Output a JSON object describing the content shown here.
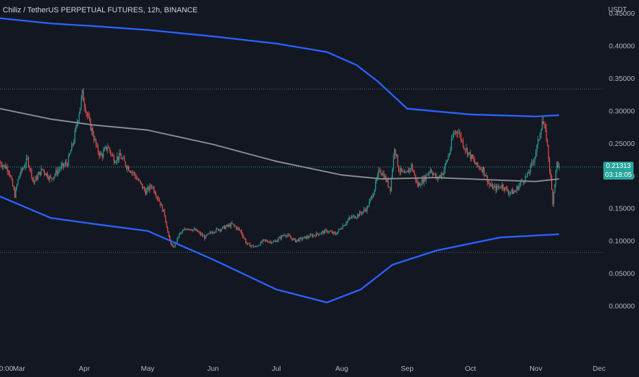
{
  "header": {
    "symbol_title": "Chiliz / TetherUS PERPETUAL FUTURES, 12h, BINANCE",
    "currency": "USDT"
  },
  "last_price": {
    "value": "0.21313",
    "countdown": "03:18:05"
  },
  "colors": {
    "background": "#131722",
    "up": "#26a69a",
    "down": "#ef5350",
    "band": "#2962ff",
    "basis": "#8d8d8d",
    "grid_line": "#5d606b",
    "text": "#b2b5be"
  },
  "chart_data": {
    "type": "candlestick",
    "y_axis": {
      "min": -0.08,
      "max": 0.47,
      "ticks": [
        "0.45000",
        "0.40000",
        "0.35000",
        "0.30000",
        "0.25000",
        "0.20000",
        "0.15000",
        "0.10000",
        "0.05000",
        "0.00000"
      ]
    },
    "x_axis": {
      "labels": [
        "0:00",
        "Mar",
        "Apr",
        "May",
        "Jun",
        "Jul",
        "Aug",
        "Sep",
        "Oct",
        "Nov",
        "Dec"
      ]
    },
    "horizontal_lines": [
      0.333,
      0.082
    ],
    "close_path": [
      [
        "Feb 20",
        0.22
      ],
      [
        "Feb 24",
        0.21
      ],
      [
        "Feb 27",
        0.17
      ],
      [
        "Mar 1",
        0.2
      ],
      [
        "Mar 5",
        0.225
      ],
      [
        "Mar 8",
        0.19
      ],
      [
        "Mar 12",
        0.21
      ],
      [
        "Mar 16",
        0.195
      ],
      [
        "Mar 20",
        0.21
      ],
      [
        "Mar 24",
        0.22
      ],
      [
        "Mar 27",
        0.255
      ],
      [
        "Mar 29",
        0.29
      ],
      [
        "Mar 31",
        0.325
      ],
      [
        "Apr 3",
        0.285
      ],
      [
        "Apr 5",
        0.265
      ],
      [
        "Apr 7",
        0.24
      ],
      [
        "Apr 9",
        0.23
      ],
      [
        "Apr 12",
        0.245
      ],
      [
        "Apr 15",
        0.225
      ],
      [
        "Apr 18",
        0.23
      ],
      [
        "Apr 21",
        0.215
      ],
      [
        "Apr 24",
        0.205
      ],
      [
        "Apr 27",
        0.19
      ],
      [
        "Apr 30",
        0.175
      ],
      [
        "May 3",
        0.185
      ],
      [
        "May 6",
        0.165
      ],
      [
        "May 9",
        0.14
      ],
      [
        "May 11",
        0.105
      ],
      [
        "May 13",
        0.088
      ],
      [
        "May 16",
        0.11
      ],
      [
        "May 20",
        0.12
      ],
      [
        "May 24",
        0.115
      ],
      [
        "May 28",
        0.105
      ],
      [
        "Jun 1",
        0.115
      ],
      [
        "Jun 6",
        0.12
      ],
      [
        "Jun 10",
        0.125
      ],
      [
        "Jun 14",
        0.115
      ],
      [
        "Jun 17",
        0.095
      ],
      [
        "Jun 21",
        0.09
      ],
      [
        "Jun 25",
        0.1
      ],
      [
        "Jun 30",
        0.098
      ],
      [
        "Jul 5",
        0.11
      ],
      [
        "Jul 10",
        0.1
      ],
      [
        "Jul 15",
        0.105
      ],
      [
        "Jul 20",
        0.11
      ],
      [
        "Jul 25",
        0.115
      ],
      [
        "Jul 29",
        0.11
      ],
      [
        "Aug 2",
        0.125
      ],
      [
        "Aug 5",
        0.135
      ],
      [
        "Aug 9",
        0.14
      ],
      [
        "Aug 13",
        0.15
      ],
      [
        "Aug 16",
        0.175
      ],
      [
        "Aug 19",
        0.21
      ],
      [
        "Aug 21",
        0.2
      ],
      [
        "Aug 24",
        0.18
      ],
      [
        "Aug 26",
        0.245
      ],
      [
        "Aug 28",
        0.21
      ],
      [
        "Aug 31",
        0.2
      ],
      [
        "Sep 3",
        0.215
      ],
      [
        "Sep 6",
        0.185
      ],
      [
        "Sep 9",
        0.195
      ],
      [
        "Sep 12",
        0.21
      ],
      [
        "Sep 15",
        0.195
      ],
      [
        "Sep 18",
        0.205
      ],
      [
        "Sep 21",
        0.235
      ],
      [
        "Sep 23",
        0.265
      ],
      [
        "Sep 25",
        0.27
      ],
      [
        "Sep 28",
        0.245
      ],
      [
        "Oct 1",
        0.23
      ],
      [
        "Oct 4",
        0.215
      ],
      [
        "Oct 7",
        0.21
      ],
      [
        "Oct 10",
        0.185
      ],
      [
        "Oct 13",
        0.18
      ],
      [
        "Oct 16",
        0.185
      ],
      [
        "Oct 19",
        0.175
      ],
      [
        "Oct 22",
        0.175
      ],
      [
        "Oct 25",
        0.19
      ],
      [
        "Oct 28",
        0.2
      ],
      [
        "Oct 31",
        0.225
      ],
      [
        "Nov 2",
        0.25
      ],
      [
        "Nov 4",
        0.285
      ],
      [
        "Nov 6",
        0.26
      ],
      [
        "Nov 8",
        0.195
      ],
      [
        "Nov 9",
        0.16
      ],
      [
        "Nov 11",
        0.22
      ],
      [
        "Nov 12",
        0.213
      ]
    ],
    "bollinger": {
      "upper": [
        [
          "Feb 20",
          0.442
        ],
        [
          "Mar 16",
          0.434
        ],
        [
          "Apr 5",
          0.43
        ],
        [
          "May 1",
          0.424
        ],
        [
          "Jun 1",
          0.414
        ],
        [
          "Jul 1",
          0.403
        ],
        [
          "Jul 25",
          0.39
        ],
        [
          "Aug 8",
          0.37
        ],
        [
          "Aug 18",
          0.345
        ],
        [
          "Sep 1",
          0.303
        ],
        [
          "Oct 1",
          0.294
        ],
        [
          "Nov 1",
          0.291
        ],
        [
          "Nov 12",
          0.293
        ]
      ],
      "basis": [
        [
          "Feb 20",
          0.303
        ],
        [
          "Mar 16",
          0.287
        ],
        [
          "Apr 5",
          0.278
        ],
        [
          "May 1",
          0.27
        ],
        [
          "Jun 1",
          0.248
        ],
        [
          "Jul 1",
          0.222
        ],
        [
          "Aug 1",
          0.201
        ],
        [
          "Aug 20",
          0.195
        ],
        [
          "Sep 15",
          0.197
        ],
        [
          "Oct 15",
          0.193
        ],
        [
          "Nov 1",
          0.191
        ],
        [
          "Nov 12",
          0.195
        ]
      ],
      "lower": [
        [
          "Feb 20",
          0.168
        ],
        [
          "Mar 16",
          0.135
        ],
        [
          "Apr 5",
          0.126
        ],
        [
          "May 1",
          0.115
        ],
        [
          "Jun 1",
          0.071
        ],
        [
          "Jul 1",
          0.025
        ],
        [
          "Jul 25",
          0.005
        ],
        [
          "Aug 10",
          0.025
        ],
        [
          "Aug 25",
          0.063
        ],
        [
          "Sep 15",
          0.085
        ],
        [
          "Oct 15",
          0.105
        ],
        [
          "Nov 1",
          0.108
        ],
        [
          "Nov 12",
          0.11
        ]
      ]
    }
  }
}
